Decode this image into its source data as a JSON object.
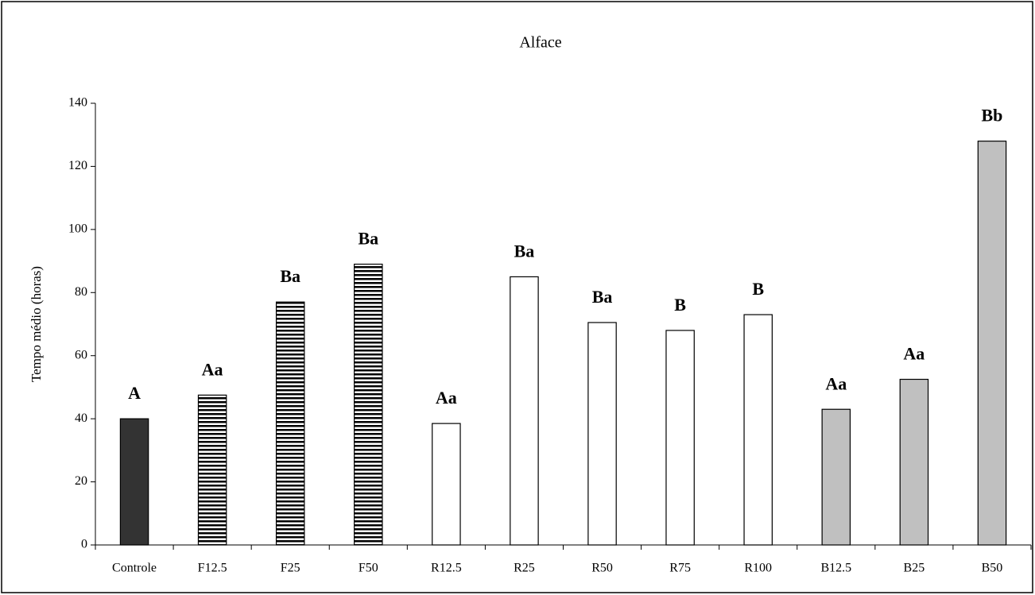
{
  "chart_data": {
    "type": "bar",
    "title": "Alface",
    "y_label": "Tempo médio (horas)",
    "categories": [
      "Controle",
      "F12.5",
      "F25",
      "F50",
      "R12.5",
      "R25",
      "R50",
      "R75",
      "R100",
      "B12.5",
      "B25",
      "B50"
    ],
    "values": [
      40,
      47.5,
      77,
      89,
      38.5,
      85,
      70.5,
      68,
      73,
      43,
      52.5,
      128
    ],
    "annotations": [
      "A",
      "Aa",
      "Ba",
      "Ba",
      "Aa",
      "Ba",
      "Ba",
      "B",
      "B",
      "Aa",
      "Aa",
      "Bb"
    ],
    "colors": [
      "#333333",
      "#000000",
      "#000000",
      "#000000",
      "#ffffff",
      "#ffffff",
      "#ffffff",
      "#ffffff",
      "#ffffff",
      "#c0c0c0",
      "#c0c0c0",
      "#c0c0c0"
    ],
    "bar_styles": [
      "solid",
      "hatched",
      "hatched",
      "hatched",
      "solid",
      "solid",
      "solid",
      "solid",
      "solid",
      "solid",
      "solid",
      "solid"
    ],
    "ylim": [
      0,
      140
    ],
    "yticks": [
      0,
      20,
      40,
      60,
      80,
      100,
      120,
      140
    ],
    "grid": false
  }
}
